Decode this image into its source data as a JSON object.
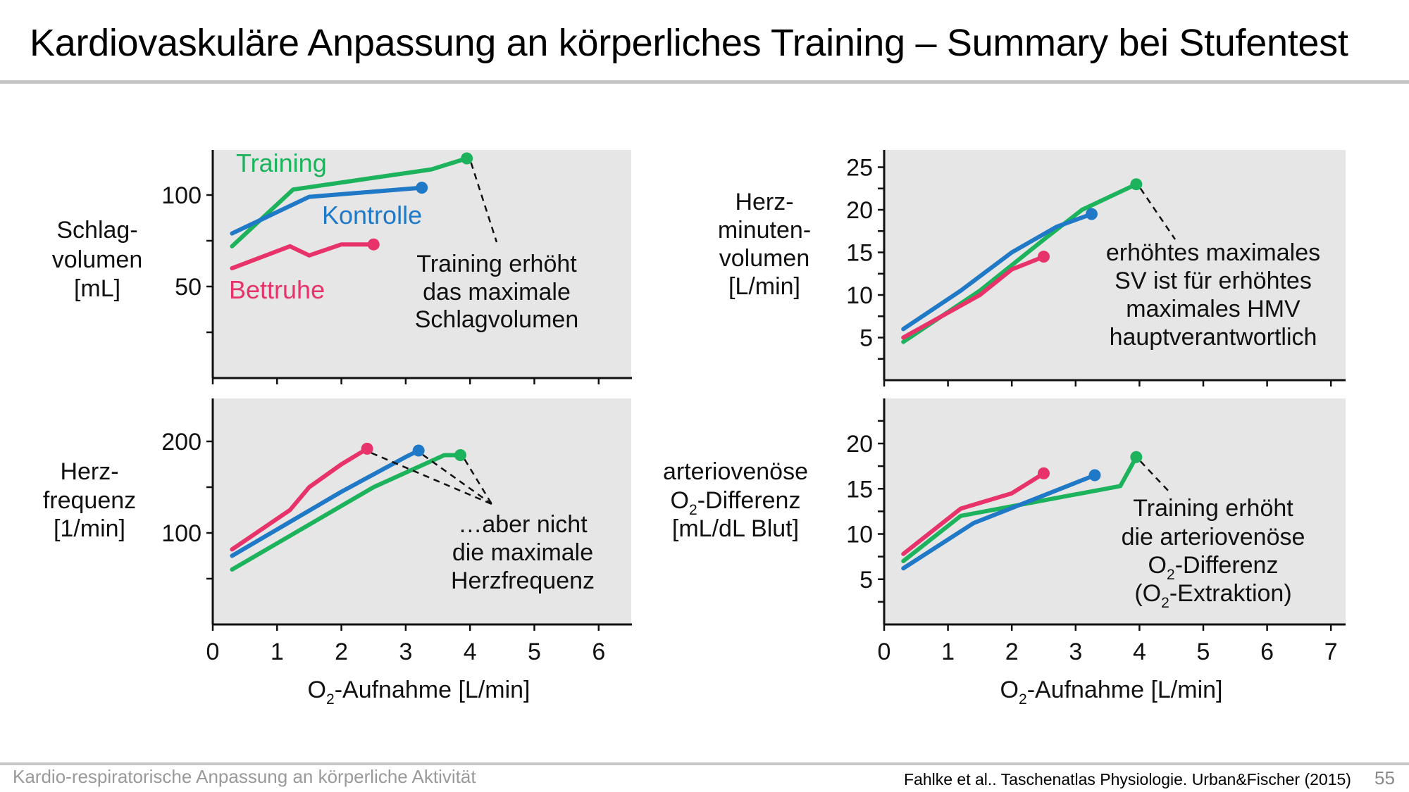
{
  "slide": {
    "title": "Kardiovaskuläre Anpassung an körperliches Training – Summary bei Stufentest",
    "footer_left": "Kardio-respiratorische Anpassung an körperliche Aktivität",
    "source": "Fahlke et al.. Taschenatlas Physiologie. Urban&Fischer (2015)",
    "page_number": "55"
  },
  "colors": {
    "training": "#1db35c",
    "kontrolle": "#2079c7",
    "bettruhe": "#e8336a",
    "panel_bg": "#e6e6e6"
  },
  "chart_data": [
    {
      "type": "line",
      "ylabel": [
        "Schlag-",
        "volumen",
        "[mL]"
      ],
      "xlim": [
        0,
        6.5
      ],
      "ylim": [
        0,
        122
      ],
      "xticks": [
        0,
        1,
        2,
        3,
        4,
        5,
        6
      ],
      "yticks": [
        50,
        100
      ],
      "show_x_tick_labels": false,
      "grid": false,
      "series": [
        {
          "name": "Training",
          "color_key": "training",
          "x": [
            0.3,
            1.25,
            3.4,
            3.95
          ],
          "y": [
            72,
            103,
            114,
            120
          ]
        },
        {
          "name": "Kontrolle",
          "color_key": "kontrolle",
          "x": [
            0.3,
            1.5,
            3.25
          ],
          "y": [
            79,
            99,
            104
          ]
        },
        {
          "name": "Bettruhe",
          "color_key": "bettruhe",
          "x": [
            0.3,
            1.2,
            1.5,
            2.0,
            2.5
          ],
          "y": [
            60,
            72,
            67,
            73,
            73
          ]
        }
      ],
      "series_labels": [
        "Training",
        "Kontrolle",
        "Bettruhe"
      ],
      "annotation": {
        "text": [
          "Training erhöht",
          "das maximale",
          "Schlagvolumen"
        ],
        "from_series": [
          "Training"
        ]
      }
    },
    {
      "type": "line",
      "ylabel": [
        "Herz-",
        "minuten-",
        "volumen",
        "[L/min]"
      ],
      "xlim": [
        0,
        7.2
      ],
      "ylim": [
        0,
        27
      ],
      "xticks": [
        0,
        1,
        2,
        3,
        4,
        5,
        6,
        7
      ],
      "yticks": [
        5,
        10,
        15,
        20,
        25
      ],
      "show_x_tick_labels": false,
      "grid": false,
      "series": [
        {
          "name": "Training",
          "color_key": "training",
          "x": [
            0.3,
            1.5,
            2.5,
            3.1,
            3.95
          ],
          "y": [
            4.5,
            10.5,
            16.5,
            20.0,
            23.0
          ]
        },
        {
          "name": "Kontrolle",
          "color_key": "kontrolle",
          "x": [
            0.3,
            1.2,
            2.0,
            2.7,
            3.25
          ],
          "y": [
            6,
            10.5,
            15,
            18,
            19.5
          ]
        },
        {
          "name": "Bettruhe",
          "color_key": "bettruhe",
          "x": [
            0.3,
            1.5,
            2.0,
            2.5
          ],
          "y": [
            5,
            10,
            13,
            14.5
          ]
        }
      ],
      "annotation": {
        "text": [
          "erhöhtes maximales",
          "SV ist für erhöhtes",
          "maximales HMV",
          "hauptverantwortlich"
        ],
        "from_series": [
          "Training"
        ]
      }
    },
    {
      "type": "line",
      "ylabel": [
        "Herz-",
        "frequenz",
        "[1/min]"
      ],
      "xlabel": "O₂-Aufnahme [L/min]",
      "xlim": [
        0,
        6.5
      ],
      "ylim": [
        0,
        250
      ],
      "xticks": [
        0,
        1,
        2,
        3,
        4,
        5,
        6
      ],
      "yticks": [
        100,
        200
      ],
      "show_x_tick_labels": true,
      "grid": false,
      "series": [
        {
          "name": "Training",
          "color_key": "training",
          "x": [
            0.3,
            2.5,
            3.6,
            3.85
          ],
          "y": [
            60,
            150,
            185,
            185
          ]
        },
        {
          "name": "Kontrolle",
          "color_key": "kontrolle",
          "x": [
            0.3,
            2.0,
            3.0,
            3.2
          ],
          "y": [
            75,
            145,
            183,
            190
          ]
        },
        {
          "name": "Bettruhe",
          "color_key": "bettruhe",
          "x": [
            0.3,
            1.2,
            1.5,
            2.0,
            2.4
          ],
          "y": [
            82,
            125,
            150,
            175,
            192
          ]
        }
      ],
      "annotation": {
        "text": [
          "…aber nicht",
          "die maximale",
          "Herzfrequenz"
        ],
        "from_series": [
          "Bettruhe",
          "Kontrolle",
          "Training"
        ]
      }
    },
    {
      "type": "line",
      "ylabel": [
        "arteriovenöse",
        "O₂-Differenz",
        "[mL/dL Blut]"
      ],
      "xlabel": "O₂-Aufnahme [L/min]",
      "xlim": [
        0,
        7.2
      ],
      "ylim": [
        0,
        25
      ],
      "xticks": [
        0,
        1,
        2,
        3,
        4,
        5,
        6,
        7
      ],
      "yticks": [
        5,
        10,
        15,
        20
      ],
      "show_x_tick_labels": true,
      "grid": false,
      "series": [
        {
          "name": "Training",
          "color_key": "training",
          "x": [
            0.3,
            1.2,
            3.7,
            3.95
          ],
          "y": [
            7,
            12,
            15.3,
            18.5
          ]
        },
        {
          "name": "Kontrolle",
          "color_key": "kontrolle",
          "x": [
            0.3,
            1.4,
            3.3
          ],
          "y": [
            6.2,
            11.2,
            16.5
          ]
        },
        {
          "name": "Bettruhe",
          "color_key": "bettruhe",
          "x": [
            0.3,
            1.2,
            2.0,
            2.5
          ],
          "y": [
            7.8,
            12.8,
            14.5,
            16.7
          ]
        }
      ],
      "annotation": {
        "text": [
          "Training erhöht",
          "die arteriovenöse",
          "O₂-Differenz",
          "(O₂-Extraktion)"
        ],
        "from_series": [
          "Training"
        ]
      }
    }
  ]
}
